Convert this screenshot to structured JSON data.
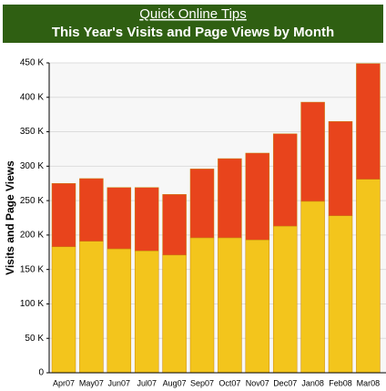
{
  "header": {
    "link": "Quick Online Tips"
  },
  "chart_data": {
    "type": "stacked-bar",
    "title": "This Year's Visits and Page Views by Month",
    "y_label": "Visits and Page Views",
    "categories": [
      "Apr07",
      "May07",
      "Jun07",
      "Jul07",
      "Aug07",
      "Sep07",
      "Oct07",
      "Nov07",
      "Dec07",
      "Jan08",
      "Feb08",
      "Mar08"
    ],
    "series": [
      {
        "color": "#f3c51c",
        "values": [
          183000,
          191000,
          180000,
          177000,
          171000,
          196000,
          196000,
          193000,
          213000,
          249000,
          228000,
          281000
        ]
      },
      {
        "color": "#e8441c",
        "values": [
          92000,
          91000,
          89000,
          92000,
          88000,
          100000,
          115000,
          126000,
          134000,
          144000,
          137000,
          168000
        ]
      }
    ],
    "ylim": [
      0,
      450000
    ],
    "yticks": [
      0,
      {
        "value": 50000,
        "label": "50 K"
      },
      {
        "value": 100000,
        "label": "100 K"
      },
      {
        "value": 150000,
        "label": "150 K"
      },
      {
        "value": 200000,
        "label": "200 K"
      },
      {
        "value": 250000,
        "label": "250 K"
      },
      {
        "value": 300000,
        "label": "300 K"
      },
      {
        "value": 350000,
        "label": "350 K"
      },
      {
        "value": 400000,
        "label": "400 K"
      },
      {
        "value": 450000,
        "label": "450 K"
      }
    ],
    "grid": true
  }
}
